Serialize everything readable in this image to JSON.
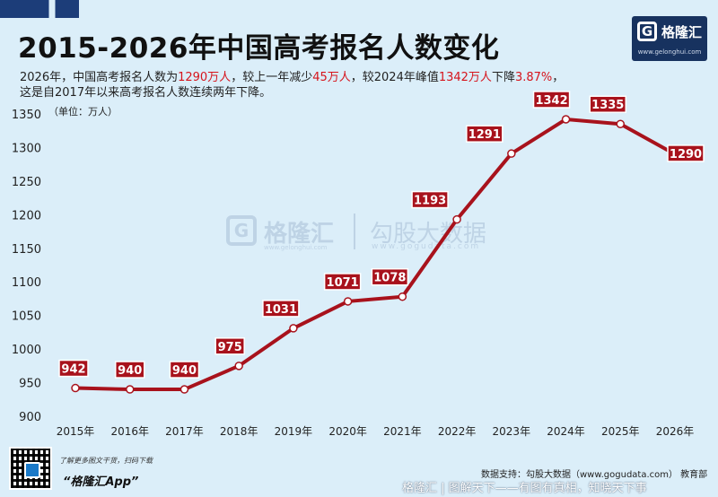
{
  "header": {
    "title": "2015-2026年中国高考报名人数变化",
    "subtitle_parts": [
      {
        "text": "2026年，中国高考报名人数为",
        "red": false
      },
      {
        "text": "1290万人",
        "red": true
      },
      {
        "text": "，较上一年减少",
        "red": false
      },
      {
        "text": "45万人",
        "red": true
      },
      {
        "text": "，较2024年峰值",
        "red": false
      },
      {
        "text": "1342万人",
        "red": true
      },
      {
        "text": "下降",
        "red": false
      },
      {
        "text": "3.87%",
        "red": true
      },
      {
        "text": "，",
        "red": false
      },
      {
        "text": "\n这是自2017年以来高考报名人数连续两年下降。",
        "red": false
      }
    ]
  },
  "logo": {
    "glyph": "G",
    "name": "格隆汇",
    "url": "www.gelonghui.com"
  },
  "watermark": {
    "glyph": "G",
    "left": "格隆汇",
    "left_url": "www.gelonghui.com",
    "right": "勾股大数据",
    "right_url": "www.gogudata.com"
  },
  "chart_data": {
    "type": "line",
    "title": "2015-2026年中国高考报名人数变化",
    "unit_label": "（单位：万人）",
    "categories": [
      "2015年",
      "2016年",
      "2017年",
      "2018年",
      "2019年",
      "2020年",
      "2021年",
      "2022年",
      "2023年",
      "2024年",
      "2025年",
      "2026年"
    ],
    "series": [
      {
        "values": [
          942,
          940,
          940,
          975,
          1031,
          1071,
          1078,
          1193,
          1291,
          1342,
          1335,
          1290
        ]
      }
    ],
    "y_ticks": [
      900,
      950,
      1000,
      1050,
      1100,
      1150,
      1200,
      1250,
      1300,
      1350
    ],
    "ylim": [
      900,
      1350
    ],
    "grid": false,
    "line_color": "#a8121c",
    "label_bg": "#a8121c",
    "label_text_color": "#ffffff"
  },
  "footer": {
    "qr_note": "了解更多图文干货，扫码下载",
    "app_name": "“格隆汇App”",
    "source": "数据支持：勾股大数据（www.gogudata.com） 教育部",
    "tagline": "格隆汇 | 图解天下——有图有真相，知晓天下事"
  }
}
